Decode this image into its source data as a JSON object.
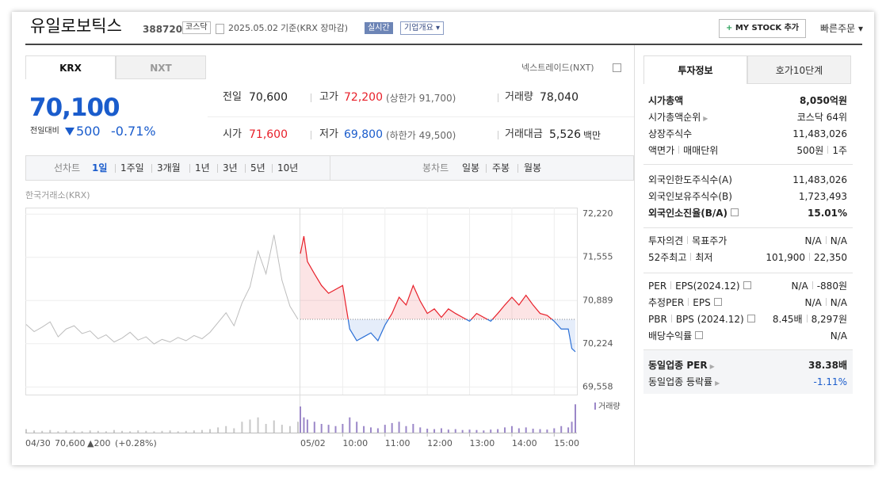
{
  "header": {
    "name": "유일로보틱스",
    "code": "388720",
    "market": "코스닥",
    "date": "2025.05.02",
    "basis": "기준(KRX 장마감)",
    "realtime": "실시간",
    "company": "기업개요",
    "mystock": "MY STOCK 추가",
    "quick_order": "빠른주문"
  },
  "tabs": [
    "KRX",
    "NXT"
  ],
  "nxt_link": "넥스트레이드(NXT)",
  "quote": {
    "price": "70,100",
    "change_label": "전일대비",
    "change": "500",
    "change_rate": "-0.71%"
  },
  "stats": [
    [
      {
        "label": "전일",
        "value": "70,600"
      },
      {
        "label": "고가",
        "value": "72,200",
        "extra": "(상한가 91,700)"
      },
      {
        "label": "거래량",
        "value": "78,040"
      }
    ],
    [
      {
        "label": "시가",
        "value": "71,600"
      },
      {
        "label": "저가",
        "value": "69,800",
        "extra": "(하한가 49,500)"
      },
      {
        "label": "거래대금",
        "value": "5,526",
        "unit": "백만"
      }
    ]
  ],
  "period": {
    "line_label": "선차트",
    "line": [
      "1일",
      "1주일",
      "3개월",
      "1년",
      "3년",
      "5년",
      "10년"
    ],
    "candle_label": "봉차트",
    "candle": [
      "일봉",
      "주봉",
      "월봉"
    ]
  },
  "price_chart": {
    "type": "line",
    "source": "한국거래소(KRX)",
    "ylim": [
      69440,
      72320
    ],
    "yticks": [
      {
        "value": 72220,
        "label": "72,220"
      },
      {
        "value": 71555,
        "label": "71,555"
      },
      {
        "value": 70889,
        "label": "70,889"
      },
      {
        "value": 70224,
        "label": "70,224"
      },
      {
        "value": 69558,
        "label": "69,558"
      }
    ],
    "reference": 70600,
    "up_color": "#e8202a",
    "down_color": "#2a6fd6",
    "previous_color": "#bdbdbd",
    "previous": {
      "values": [
        70520,
        70410,
        70480,
        70560,
        70330,
        70450,
        70500,
        70380,
        70420,
        70300,
        70360,
        70250,
        70310,
        70400,
        70280,
        70330,
        70220,
        70290,
        70250,
        70320,
        70270,
        70350,
        70300,
        70400,
        70550,
        70700,
        70500,
        70850,
        71100,
        71650,
        71300,
        71900,
        71200,
        70800,
        70600
      ]
    },
    "today": {
      "date": "05/02",
      "x": [
        0,
        5,
        10,
        20,
        30,
        40,
        50,
        60,
        70,
        80,
        90,
        100,
        110,
        120,
        130,
        140,
        150,
        160,
        170,
        180,
        190,
        200,
        210,
        220,
        230,
        240,
        250,
        260,
        270,
        280,
        290,
        300,
        310,
        320,
        330,
        340,
        350,
        360,
        370,
        380,
        385,
        390
      ],
      "values": [
        71610,
        71880,
        71490,
        71300,
        71120,
        71000,
        71060,
        71120,
        70450,
        70270,
        70330,
        70390,
        70270,
        70510,
        70690,
        70940,
        70820,
        71120,
        70880,
        70690,
        70760,
        70630,
        70760,
        70690,
        70630,
        70570,
        70690,
        70630,
        70570,
        70690,
        70820,
        70940,
        70820,
        70970,
        70820,
        70690,
        70660,
        70570,
        70450,
        70450,
        70150,
        70100
      ]
    },
    "xlim": [
      0,
      390
    ],
    "xticks": [
      {
        "value": 60,
        "label": "10:00"
      },
      {
        "value": 120,
        "label": "11:00"
      },
      {
        "value": 180,
        "label": "12:00"
      },
      {
        "value": 240,
        "label": "13:00"
      },
      {
        "value": 300,
        "label": "14:00"
      },
      {
        "value": 360,
        "label": "15:00"
      }
    ],
    "volume": {
      "label": "거래량",
      "color": "#9b87c8",
      "ylim": [
        0,
        8000
      ],
      "previous": [
        800,
        500,
        400,
        600,
        300,
        500,
        400,
        300,
        500,
        400,
        300,
        600,
        400,
        300,
        500,
        400,
        300,
        400,
        500,
        300,
        400,
        500,
        600,
        800,
        1200,
        1500,
        1000,
        2500,
        3000,
        3500,
        2000,
        2800,
        1800,
        1500,
        2500
      ],
      "today": [
        6000,
        3500,
        3000,
        2500,
        2000,
        1800,
        1500,
        2000,
        3500,
        2500,
        1500,
        1200,
        1000,
        1800,
        2200,
        2500,
        1500,
        2000,
        1200,
        900,
        800,
        1000,
        700,
        800,
        600,
        700,
        600,
        500,
        700,
        800,
        1200,
        1500,
        1000,
        1200,
        900,
        800,
        700,
        1000,
        1500,
        1200,
        2500,
        6500
      ]
    },
    "summary": {
      "date": "04/30",
      "close": "70,600",
      "change": "▲200",
      "rate": "(+0.28%)"
    }
  },
  "invest": {
    "tabs": [
      "투자정보",
      "호가10단계"
    ],
    "sections": [
      [
        {
          "label": [
            "시가총액"
          ],
          "value": [
            "8,050억원"
          ]
        },
        {
          "label": [
            "시가총액순위"
          ],
          "value": [
            "코스닥 64위"
          ]
        },
        {
          "label": [
            "상장주식수"
          ],
          "value": [
            "11,483,026"
          ]
        },
        {
          "label": [
            "액면가",
            "매매단위"
          ],
          "value": [
            "500원",
            "1주"
          ]
        }
      ],
      [
        {
          "label": [
            "외국인한도주식수(A)"
          ],
          "value": [
            "11,483,026"
          ]
        },
        {
          "label": [
            "외국인보유주식수(B)"
          ],
          "value": [
            "1,723,493"
          ]
        },
        {
          "label": [
            "외국인소진율(B/A)"
          ],
          "value": [
            "15.01%"
          ]
        }
      ],
      [
        {
          "label": [
            "투자의견",
            "목표주가"
          ],
          "value": [
            "N/A",
            "N/A"
          ]
        },
        {
          "label": [
            "52주최고",
            "최저"
          ],
          "value": [
            "101,900",
            "22,350"
          ]
        }
      ],
      [
        {
          "label": [
            "PER",
            "EPS(2024.12)"
          ],
          "value": [
            "N/A",
            "-880원"
          ]
        },
        {
          "label": [
            "추정PER",
            "EPS"
          ],
          "value": [
            "N/A",
            "N/A"
          ]
        },
        {
          "label": [
            "PBR",
            "BPS (2024.12)"
          ],
          "value": [
            "8.45배",
            "8,297원"
          ]
        },
        {
          "label": [
            "배당수익률"
          ],
          "value": [
            "N/A"
          ]
        }
      ],
      [
        {
          "label": [
            "동일업종 PER"
          ],
          "value": [
            "38.38배"
          ]
        },
        {
          "label": [
            "동일업종 등락률"
          ],
          "value": [
            "-1.11%"
          ]
        }
      ]
    ]
  }
}
